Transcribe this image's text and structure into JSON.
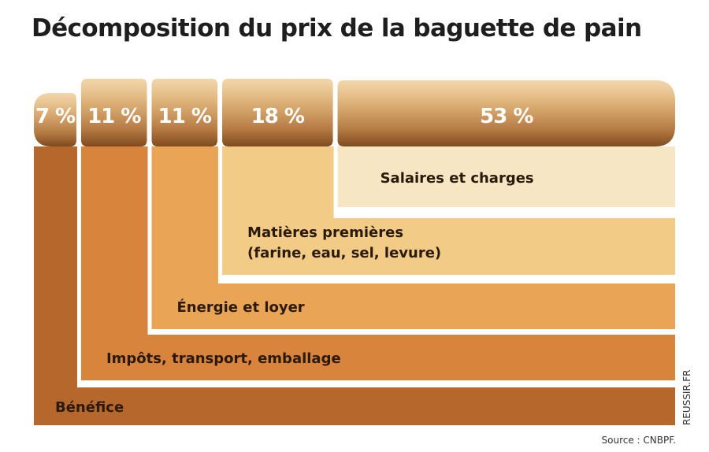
{
  "title": "Décomposition du prix de la baguette de pain",
  "source": "Source : CNBPF.",
  "brand": "REUSSIR.FR",
  "chart_data": {
    "type": "bar",
    "title": "Décomposition du prix de la baguette de pain",
    "unit": "%",
    "series": [
      {
        "category": "Bénéfice",
        "value": 7,
        "label": "7 %",
        "color": "#b5672c"
      },
      {
        "category": "Impôts, transport, emballage",
        "value": 11,
        "label": "11 %",
        "color": "#d8843c"
      },
      {
        "category": "Énergie et loyer",
        "value": 11,
        "label": "11 %",
        "color": "#e9a455"
      },
      {
        "category": "Matières premières",
        "category_line2": "(farine, eau, sel, levure)",
        "value": 18,
        "label": "18 %",
        "color": "#f2cb86"
      },
      {
        "category": "Salaires et charges",
        "value": 53,
        "label": "53 %",
        "color": "#f7e6c4"
      }
    ]
  }
}
